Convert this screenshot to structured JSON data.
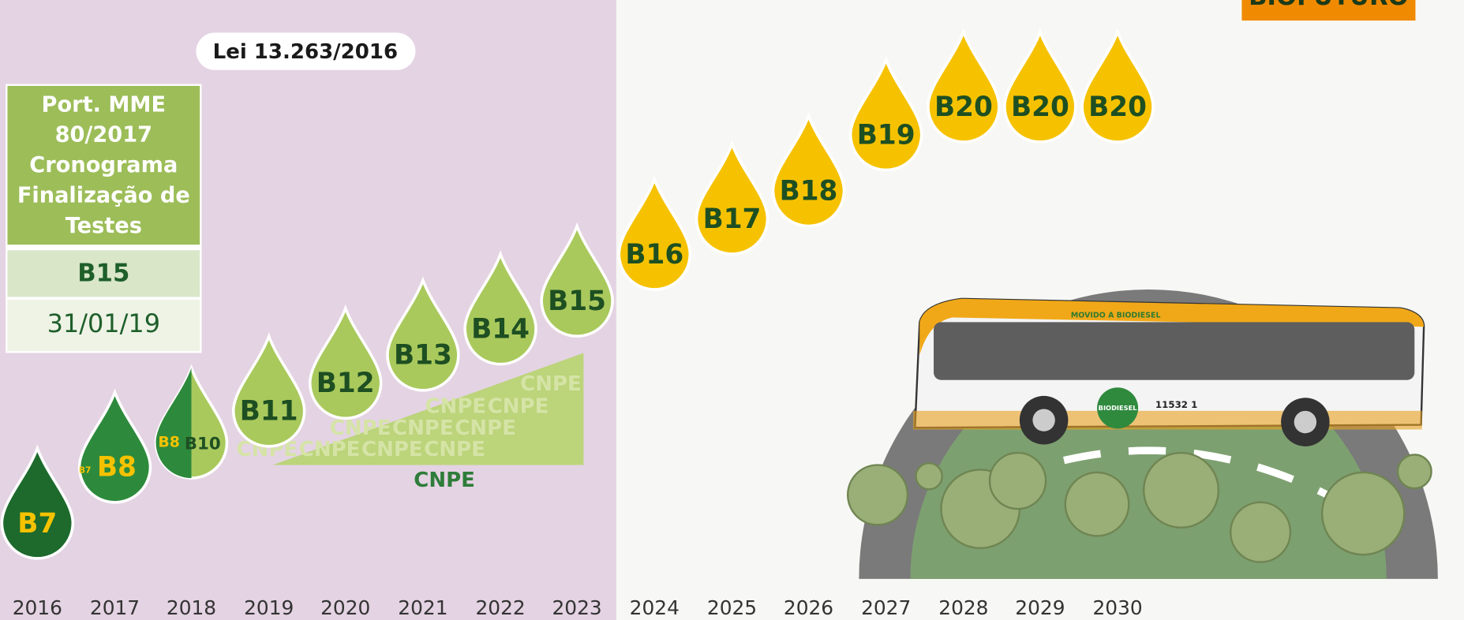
{
  "banner": "BIOFUTURO",
  "law": "Lei 13.263/2016",
  "portaria": {
    "title_lines": [
      "Port. MME",
      "80/2017",
      "Cronograma",
      "Finalização de",
      "Testes"
    ],
    "blend": "B15",
    "date": "31/01/19"
  },
  "cnpe": {
    "label": "CNPE",
    "watermark": "CNPE"
  },
  "bus": {
    "slogan": "MOVIDO A BIODIESEL",
    "number": "11532 1",
    "seal": "BIODIESEL"
  },
  "timeline": [
    {
      "year": "2016",
      "drop": "B7"
    },
    {
      "year": "2017",
      "drop": "B8",
      "sub": "B7"
    },
    {
      "year": "2018",
      "drop": "B10",
      "sub": "B8"
    },
    {
      "year": "2019",
      "drop": "B11"
    },
    {
      "year": "2020",
      "drop": "B12"
    },
    {
      "year": "2021",
      "drop": "B13"
    },
    {
      "year": "2022",
      "drop": "B14"
    },
    {
      "year": "2023",
      "drop": "B15"
    },
    {
      "year": "2024",
      "drop": "B16"
    },
    {
      "year": "2025",
      "drop": "B17"
    },
    {
      "year": "2026",
      "drop": "B18"
    },
    {
      "year": "2027",
      "drop": "B19"
    },
    {
      "year": "2028",
      "drop": "B20"
    },
    {
      "year": "2029",
      "drop": "B20"
    },
    {
      "year": "2030",
      "drop": "B20"
    }
  ]
}
